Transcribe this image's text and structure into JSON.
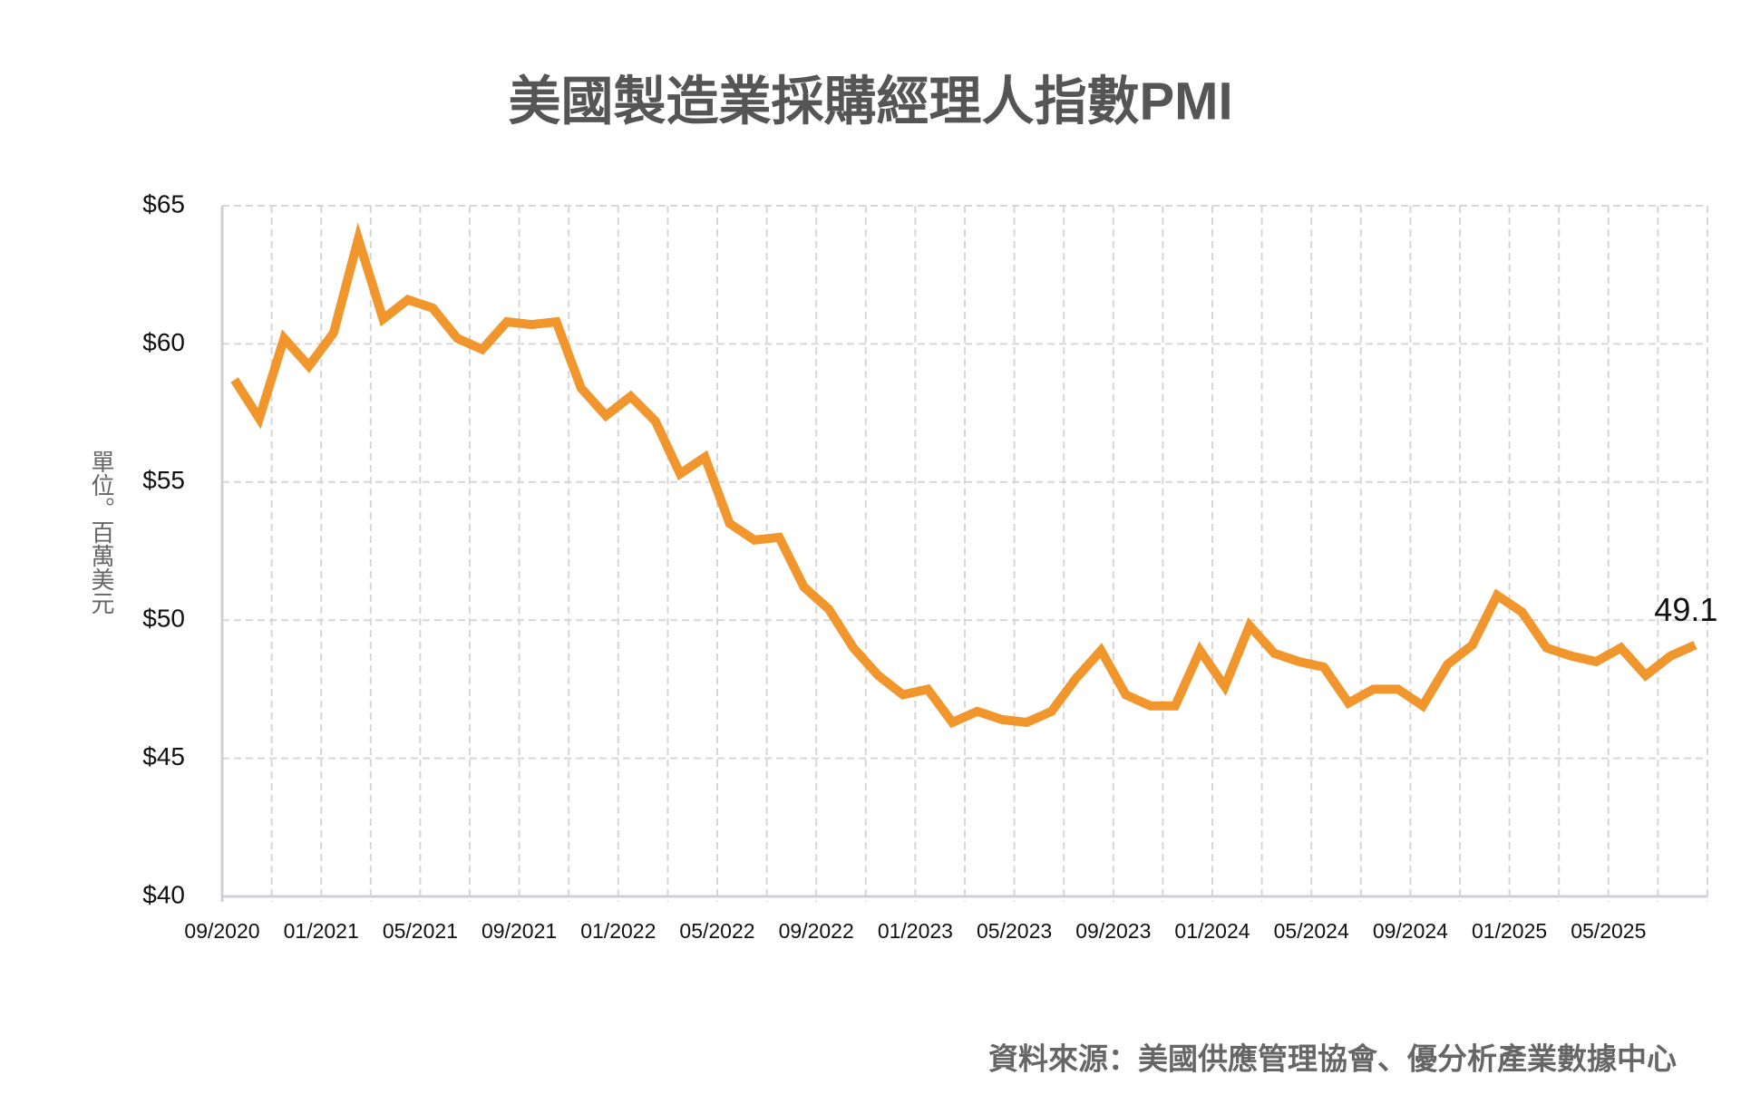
{
  "chart_data": {
    "type": "line",
    "title": "美國製造業採購經理人指數PMI",
    "y_axis_label": "單位。百萬美元",
    "source": "資料來源：美國供應管理協會、優分析產業數據中心",
    "annotation": "49.1",
    "categories": [
      "09/2020",
      null,
      null,
      null,
      "01/2021",
      null,
      null,
      null,
      "05/2021",
      null,
      null,
      null,
      "09/2021",
      null,
      null,
      null,
      "01/2022",
      null,
      null,
      null,
      "05/2022",
      null,
      null,
      null,
      "09/2022",
      null,
      null,
      null,
      "01/2023",
      null,
      null,
      null,
      "05/2023",
      null,
      null,
      null,
      "09/2023",
      null,
      null,
      null,
      "01/2024",
      null,
      null,
      null,
      "05/2024",
      null,
      null,
      null,
      "09/2024",
      null,
      null,
      null,
      "01/2025",
      null,
      null,
      null,
      "05/2025",
      null,
      null,
      null
    ],
    "values": [
      58.7,
      57.3,
      60.2,
      59.2,
      60.4,
      63.8,
      60.9,
      61.6,
      61.3,
      60.2,
      59.8,
      60.8,
      60.7,
      60.8,
      58.4,
      57.4,
      58.1,
      57.2,
      55.3,
      55.9,
      53.5,
      52.9,
      53.0,
      51.2,
      50.4,
      49.0,
      48.0,
      47.3,
      47.5,
      46.3,
      46.7,
      46.4,
      46.3,
      46.7,
      47.9,
      48.9,
      47.3,
      46.9,
      46.9,
      48.9,
      47.6,
      49.8,
      48.8,
      48.5,
      48.3,
      47.0,
      47.5,
      47.5,
      46.9,
      48.4,
      49.1,
      50.9,
      50.3,
      49.0,
      48.7,
      48.5,
      49.0,
      48.0,
      48.7,
      49.1
    ],
    "color": "#f0962c",
    "ylim": [
      40,
      65
    ],
    "yticks": [
      {
        "value": 40,
        "label": "$40"
      },
      {
        "value": 45,
        "label": "$45"
      },
      {
        "value": 50,
        "label": "$50"
      },
      {
        "value": 55,
        "label": "$55"
      },
      {
        "value": 60,
        "label": "$60"
      },
      {
        "value": 65,
        "label": "$65"
      }
    ],
    "grid": true
  }
}
